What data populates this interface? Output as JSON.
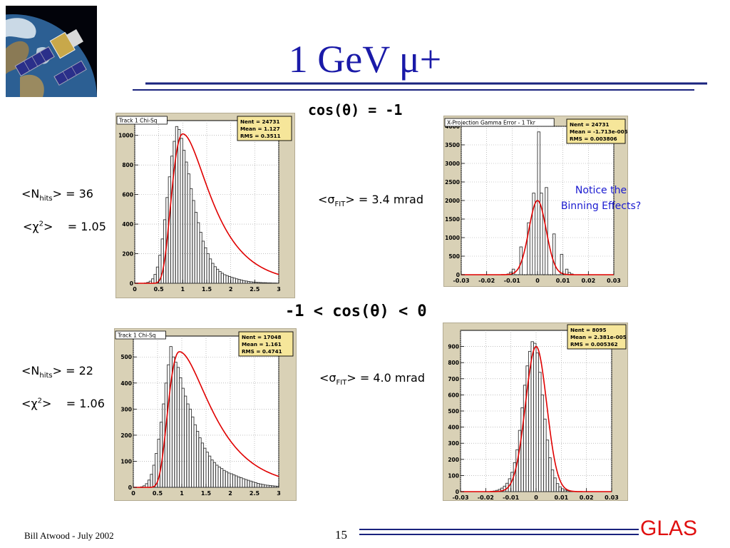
{
  "slide": {
    "title": "1 GeV μ+",
    "section_top": "cos(θ)  = -1",
    "section_bottom": "-1 < cos(θ) < 0",
    "notice_line1": "Notice the",
    "notice_line2": "Binning Effects?",
    "footer_author": "Bill Atwood  - July 2002",
    "page_number": "15",
    "logo_text": "GLAS",
    "title_color": "#1a1aa8",
    "logo_color": "#e01010",
    "rule_color": "#1a237e"
  },
  "stats": {
    "top": {
      "nhits_label": "<N",
      "nhits_sub": "hits",
      "nhits_value": "> = 36",
      "chi2_label": "<χ",
      "chi2_sup": "2",
      "chi2_value": ">    = 1.05",
      "sigma_label": "<σ",
      "sigma_sub": "FIT",
      "sigma_value": "> = 3.4 mrad"
    },
    "bottom": {
      "nhits_label": "<N",
      "nhits_sub": "hits",
      "nhits_value": "> = 22",
      "chi2_label": "<χ",
      "chi2_sup": "2",
      "chi2_value": ">    = 1.06",
      "sigma_label": "<σ",
      "sigma_sub": "FIT",
      "sigma_value": "> = 4.0 mrad"
    }
  },
  "chart_data": [
    {
      "type": "bar",
      "title": "Track 1 Chi-Sq",
      "stats_box": [
        "Nent = 24731",
        "Mean  =  1.127",
        "RMS   =  0.3511"
      ],
      "xlim": [
        0,
        3
      ],
      "ylim": [
        0,
        1100
      ],
      "xticks": [
        0,
        0.5,
        1,
        1.5,
        2,
        2.5,
        3
      ],
      "xtick_labels": [
        "0",
        "0.5",
        "1",
        "1.5",
        "2",
        "2.5",
        "3"
      ],
      "yticks": [
        0,
        200,
        400,
        600,
        800,
        1000
      ],
      "ytick_labels": [
        "0",
        "200",
        "400",
        "600",
        "800",
        "1000"
      ],
      "grid": true,
      "hist": {
        "x_start": 0,
        "bin_width": 0.05,
        "values": [
          0,
          0,
          0,
          0,
          2,
          6,
          14,
          30,
          60,
          110,
          190,
          300,
          430,
          580,
          720,
          860,
          960,
          1060,
          1040,
          980,
          900,
          820,
          740,
          640,
          560,
          480,
          410,
          345,
          285,
          240,
          200,
          165,
          135,
          112,
          95,
          80,
          68,
          58,
          52,
          46,
          40,
          35,
          30,
          26,
          22,
          18,
          15,
          12,
          10,
          8,
          7,
          6,
          5,
          4,
          4,
          3,
          3,
          2,
          2,
          1
        ]
      },
      "fit": {
        "function": "landau",
        "peak_x": 1.0,
        "peak_y": 1010,
        "width_left": 0.2,
        "width_right": 0.3
      }
    },
    {
      "type": "bar",
      "title": "X-Projection Gamma Error - 1 Tkr",
      "stats_box": [
        "Nent = 24731",
        "Mean  = -1.713e-005",
        "RMS   = 0.003806"
      ],
      "xlim": [
        -0.03,
        0.03
      ],
      "ylim": [
        0,
        4000
      ],
      "xticks": [
        -0.03,
        -0.02,
        -0.01,
        0,
        0.01,
        0.02,
        0.03
      ],
      "xtick_labels": [
        "-0.03",
        "-0.02",
        "-0.01",
        "0",
        "0.01",
        "0.02",
        "0.03"
      ],
      "yticks": [
        0,
        500,
        1000,
        1500,
        2000,
        2500,
        3000,
        3500,
        4000
      ],
      "ytick_labels": [
        "0",
        "500",
        "1000",
        "1500",
        "2000",
        "2500",
        "3000",
        "3500",
        "4000"
      ],
      "grid": true,
      "hist": {
        "x_start": -0.03,
        "bin_width": 0.001,
        "values": [
          0,
          0,
          0,
          0,
          0,
          0,
          0,
          0,
          0,
          0,
          0,
          0,
          0,
          0,
          0,
          0,
          0,
          0,
          20,
          70,
          150,
          0,
          0,
          750,
          0,
          0,
          1400,
          0,
          2200,
          0,
          3850,
          2200,
          0,
          2350,
          0,
          0,
          1100,
          0,
          0,
          550,
          0,
          150,
          60,
          20,
          0,
          0,
          0,
          0,
          0,
          0,
          0,
          0,
          0,
          0,
          0,
          0,
          0,
          0,
          0,
          0
        ]
      },
      "fit": {
        "function": "gaussian",
        "mean": 0.0,
        "sigma": 0.0034,
        "amplitude": 2000
      }
    },
    {
      "type": "bar",
      "title": "Track 1 Chi-Sq",
      "stats_box": [
        "Nent = 17048",
        "Mean  =  1.161",
        "RMS   =  0.4741"
      ],
      "xlim": [
        0,
        3
      ],
      "ylim": [
        0,
        580
      ],
      "xticks": [
        0,
        0.5,
        1,
        1.5,
        2,
        2.5,
        3
      ],
      "xtick_labels": [
        "0",
        "0.5",
        "1",
        "1.5",
        "2",
        "2.5",
        "3"
      ],
      "yticks": [
        0,
        100,
        200,
        300,
        400,
        500
      ],
      "ytick_labels": [
        "0",
        "100",
        "200",
        "300",
        "400",
        "500"
      ],
      "grid": true,
      "hist": {
        "x_start": 0,
        "bin_width": 0.05,
        "values": [
          0,
          0,
          0,
          2,
          6,
          14,
          28,
          50,
          85,
          130,
          185,
          250,
          320,
          400,
          470,
          540,
          500,
          480,
          460,
          420,
          380,
          350,
          320,
          300,
          270,
          240,
          215,
          190,
          170,
          150,
          135,
          120,
          105,
          95,
          85,
          78,
          72,
          65,
          60,
          55,
          52,
          48,
          44,
          40,
          37,
          33,
          30,
          27,
          24,
          21,
          18,
          15,
          13,
          11,
          9,
          8,
          7,
          6,
          5,
          4
        ]
      },
      "fit": {
        "function": "landau",
        "peak_x": 0.95,
        "peak_y": 520,
        "width_left": 0.2,
        "width_right": 0.34
      }
    },
    {
      "type": "bar",
      "title": "",
      "stats_box": [
        "Nent = 8095",
        "Mean  = 2.381e-005",
        "RMS   = 0.005362"
      ],
      "xlim": [
        -0.03,
        0.03
      ],
      "ylim": [
        0,
        1000
      ],
      "xticks": [
        -0.03,
        -0.02,
        -0.01,
        0,
        0.01,
        0.02,
        0.03
      ],
      "xtick_labels": [
        "-0.03",
        "-0.02",
        "-0.01",
        "0",
        "0.01",
        "0.02",
        "0.03"
      ],
      "yticks": [
        0,
        100,
        200,
        300,
        400,
        500,
        600,
        700,
        800,
        900
      ],
      "ytick_labels": [
        "0",
        "100",
        "200",
        "300",
        "400",
        "500",
        "600",
        "700",
        "800",
        "900"
      ],
      "grid": true,
      "hist": {
        "x_start": -0.03,
        "bin_width": 0.001,
        "values": [
          0,
          0,
          0,
          0,
          0,
          0,
          0,
          0,
          0,
          0,
          0,
          0,
          2,
          4,
          8,
          14,
          22,
          34,
          52,
          80,
          120,
          180,
          260,
          380,
          520,
          660,
          780,
          870,
          930,
          920,
          860,
          740,
          600,
          450,
          320,
          210,
          135,
          85,
          50,
          30,
          18,
          10,
          6,
          3,
          2,
          1,
          0,
          0,
          0,
          0,
          0,
          0,
          0,
          0,
          0,
          0,
          0,
          0,
          0,
          0
        ]
      },
      "fit": {
        "function": "gaussian",
        "mean": 0.0,
        "sigma": 0.0042,
        "amplitude": 900
      }
    }
  ]
}
